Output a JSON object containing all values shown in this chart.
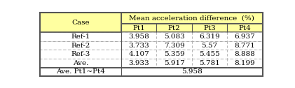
{
  "title": "Mean acceleration difference  (%)",
  "col_headers": [
    "Case",
    "Pt1",
    "Pt2",
    "Pt3",
    "Pt4"
  ],
  "rows": [
    [
      "Ref-1",
      "3.958",
      "5.083",
      "6.319",
      "6.937"
    ],
    [
      "Ref-2",
      "3.733",
      "7.309",
      "5.57",
      "8.771"
    ],
    [
      "Ref-3",
      "4.107",
      "5.359",
      "5.455",
      "8.888"
    ],
    [
      "Ave.",
      "3.933",
      "5.917",
      "5.781",
      "8.199"
    ]
  ],
  "footer_label": "Ave. Pt1~Pt4",
  "footer_value": "5.958",
  "header_bg": "#ffffa0",
  "border_color": "#555555",
  "dashed_color": "#aaaaaa",
  "text_color": "#000000",
  "font_size": 7.5,
  "col_widths_rel": [
    2.3,
    1.0,
    1.0,
    1.0,
    1.0
  ]
}
